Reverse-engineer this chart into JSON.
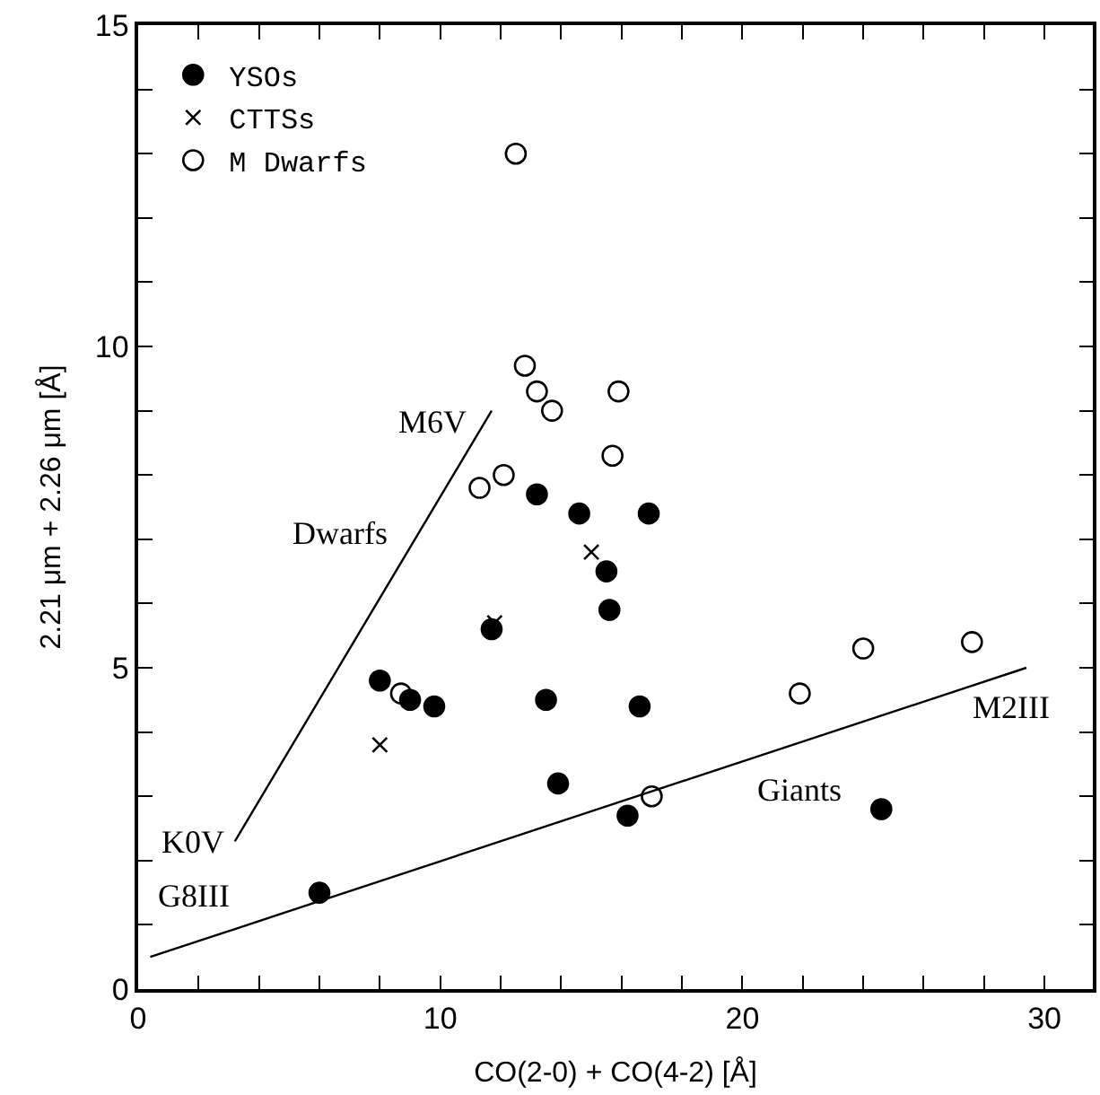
{
  "chart_data": {
    "type": "scatter",
    "xlabel": "CO(2-0) + CO(4-2) [Å]",
    "ylabel": "2.21 μm + 2.26 μm [Å]",
    "xlim": [
      0,
      31.6
    ],
    "ylim": [
      0,
      15
    ],
    "xticks": [
      0,
      {
        "value": 2,
        "label": null
      },
      {
        "value": 4,
        "label": null
      },
      {
        "value": 6,
        "label": null
      },
      {
        "value": 8,
        "label": null
      },
      10,
      {
        "value": 12,
        "label": null
      },
      {
        "value": 14,
        "label": null
      },
      {
        "value": 16,
        "label": null
      },
      {
        "value": 18,
        "label": null
      },
      20,
      {
        "value": 22,
        "label": null
      },
      {
        "value": 24,
        "label": null
      },
      {
        "value": 26,
        "label": null
      },
      {
        "value": 28,
        "label": null
      },
      30
    ],
    "yticks": [
      0,
      {
        "value": 1,
        "label": null
      },
      {
        "value": 2,
        "label": null
      },
      {
        "value": 3,
        "label": null
      },
      {
        "value": 4,
        "label": null
      },
      5,
      {
        "value": 6,
        "label": null
      },
      {
        "value": 7,
        "label": null
      },
      {
        "value": 8,
        "label": null
      },
      {
        "value": 9,
        "label": null
      },
      10,
      {
        "value": 11,
        "label": null
      },
      {
        "value": 12,
        "label": null
      },
      {
        "value": 13,
        "label": null
      },
      {
        "value": 14,
        "label": null
      },
      15
    ],
    "legend": "top left",
    "series": [
      {
        "name": "YSOs",
        "color": "#000000",
        "marker": "circle",
        "x": [
          13.2,
          14.6,
          16.9,
          15.5,
          15.6,
          11.7,
          8.0,
          9.0,
          9.8,
          13.5,
          16.6,
          13.9,
          16.2,
          6.0,
          24.6
        ],
        "values": [
          7.7,
          7.4,
          7.4,
          6.5,
          5.9,
          5.6,
          4.8,
          4.5,
          4.4,
          4.5,
          4.4,
          3.2,
          2.7,
          1.5,
          2.8
        ]
      },
      {
        "name": "CTTSs",
        "color": "#000000",
        "marker": "cross",
        "x": [
          15.0,
          11.8,
          8.0
        ],
        "values": [
          6.8,
          5.7,
          3.8
        ]
      },
      {
        "name": "M Dwarfs",
        "color": "#000000",
        "marker": "circle-open",
        "x": [
          12.8,
          13.2,
          13.7,
          15.9,
          15.7,
          12.1,
          11.3,
          8.7,
          12.5,
          17.0,
          21.9,
          24.0,
          27.6
        ],
        "values": [
          9.7,
          9.3,
          9.0,
          9.3,
          8.3,
          8.0,
          7.8,
          4.6,
          13.0,
          3.0,
          4.6,
          5.3,
          5.4
        ]
      },
      {
        "type": "line",
        "name": "Dwarfs",
        "color": "#000000",
        "marker": "none",
        "x": [
          3.2,
          11.7
        ],
        "values": [
          2.3,
          9.0
        ]
      },
      {
        "type": "line",
        "name": "Giants",
        "color": "#000000",
        "marker": "none",
        "x": [
          0.4,
          29.4
        ],
        "values": [
          0.5,
          5.0
        ]
      }
    ],
    "annotations": [
      {
        "text": "M6V",
        "x": 11.7,
        "y": 9.0
      },
      {
        "text": "K0V",
        "x": 3.2,
        "y": 2.3
      },
      {
        "text": "G8III",
        "x": 0.4,
        "y": 0.5
      },
      {
        "text": "M2III",
        "x": 29.4,
        "y": 5.0
      }
    ]
  }
}
